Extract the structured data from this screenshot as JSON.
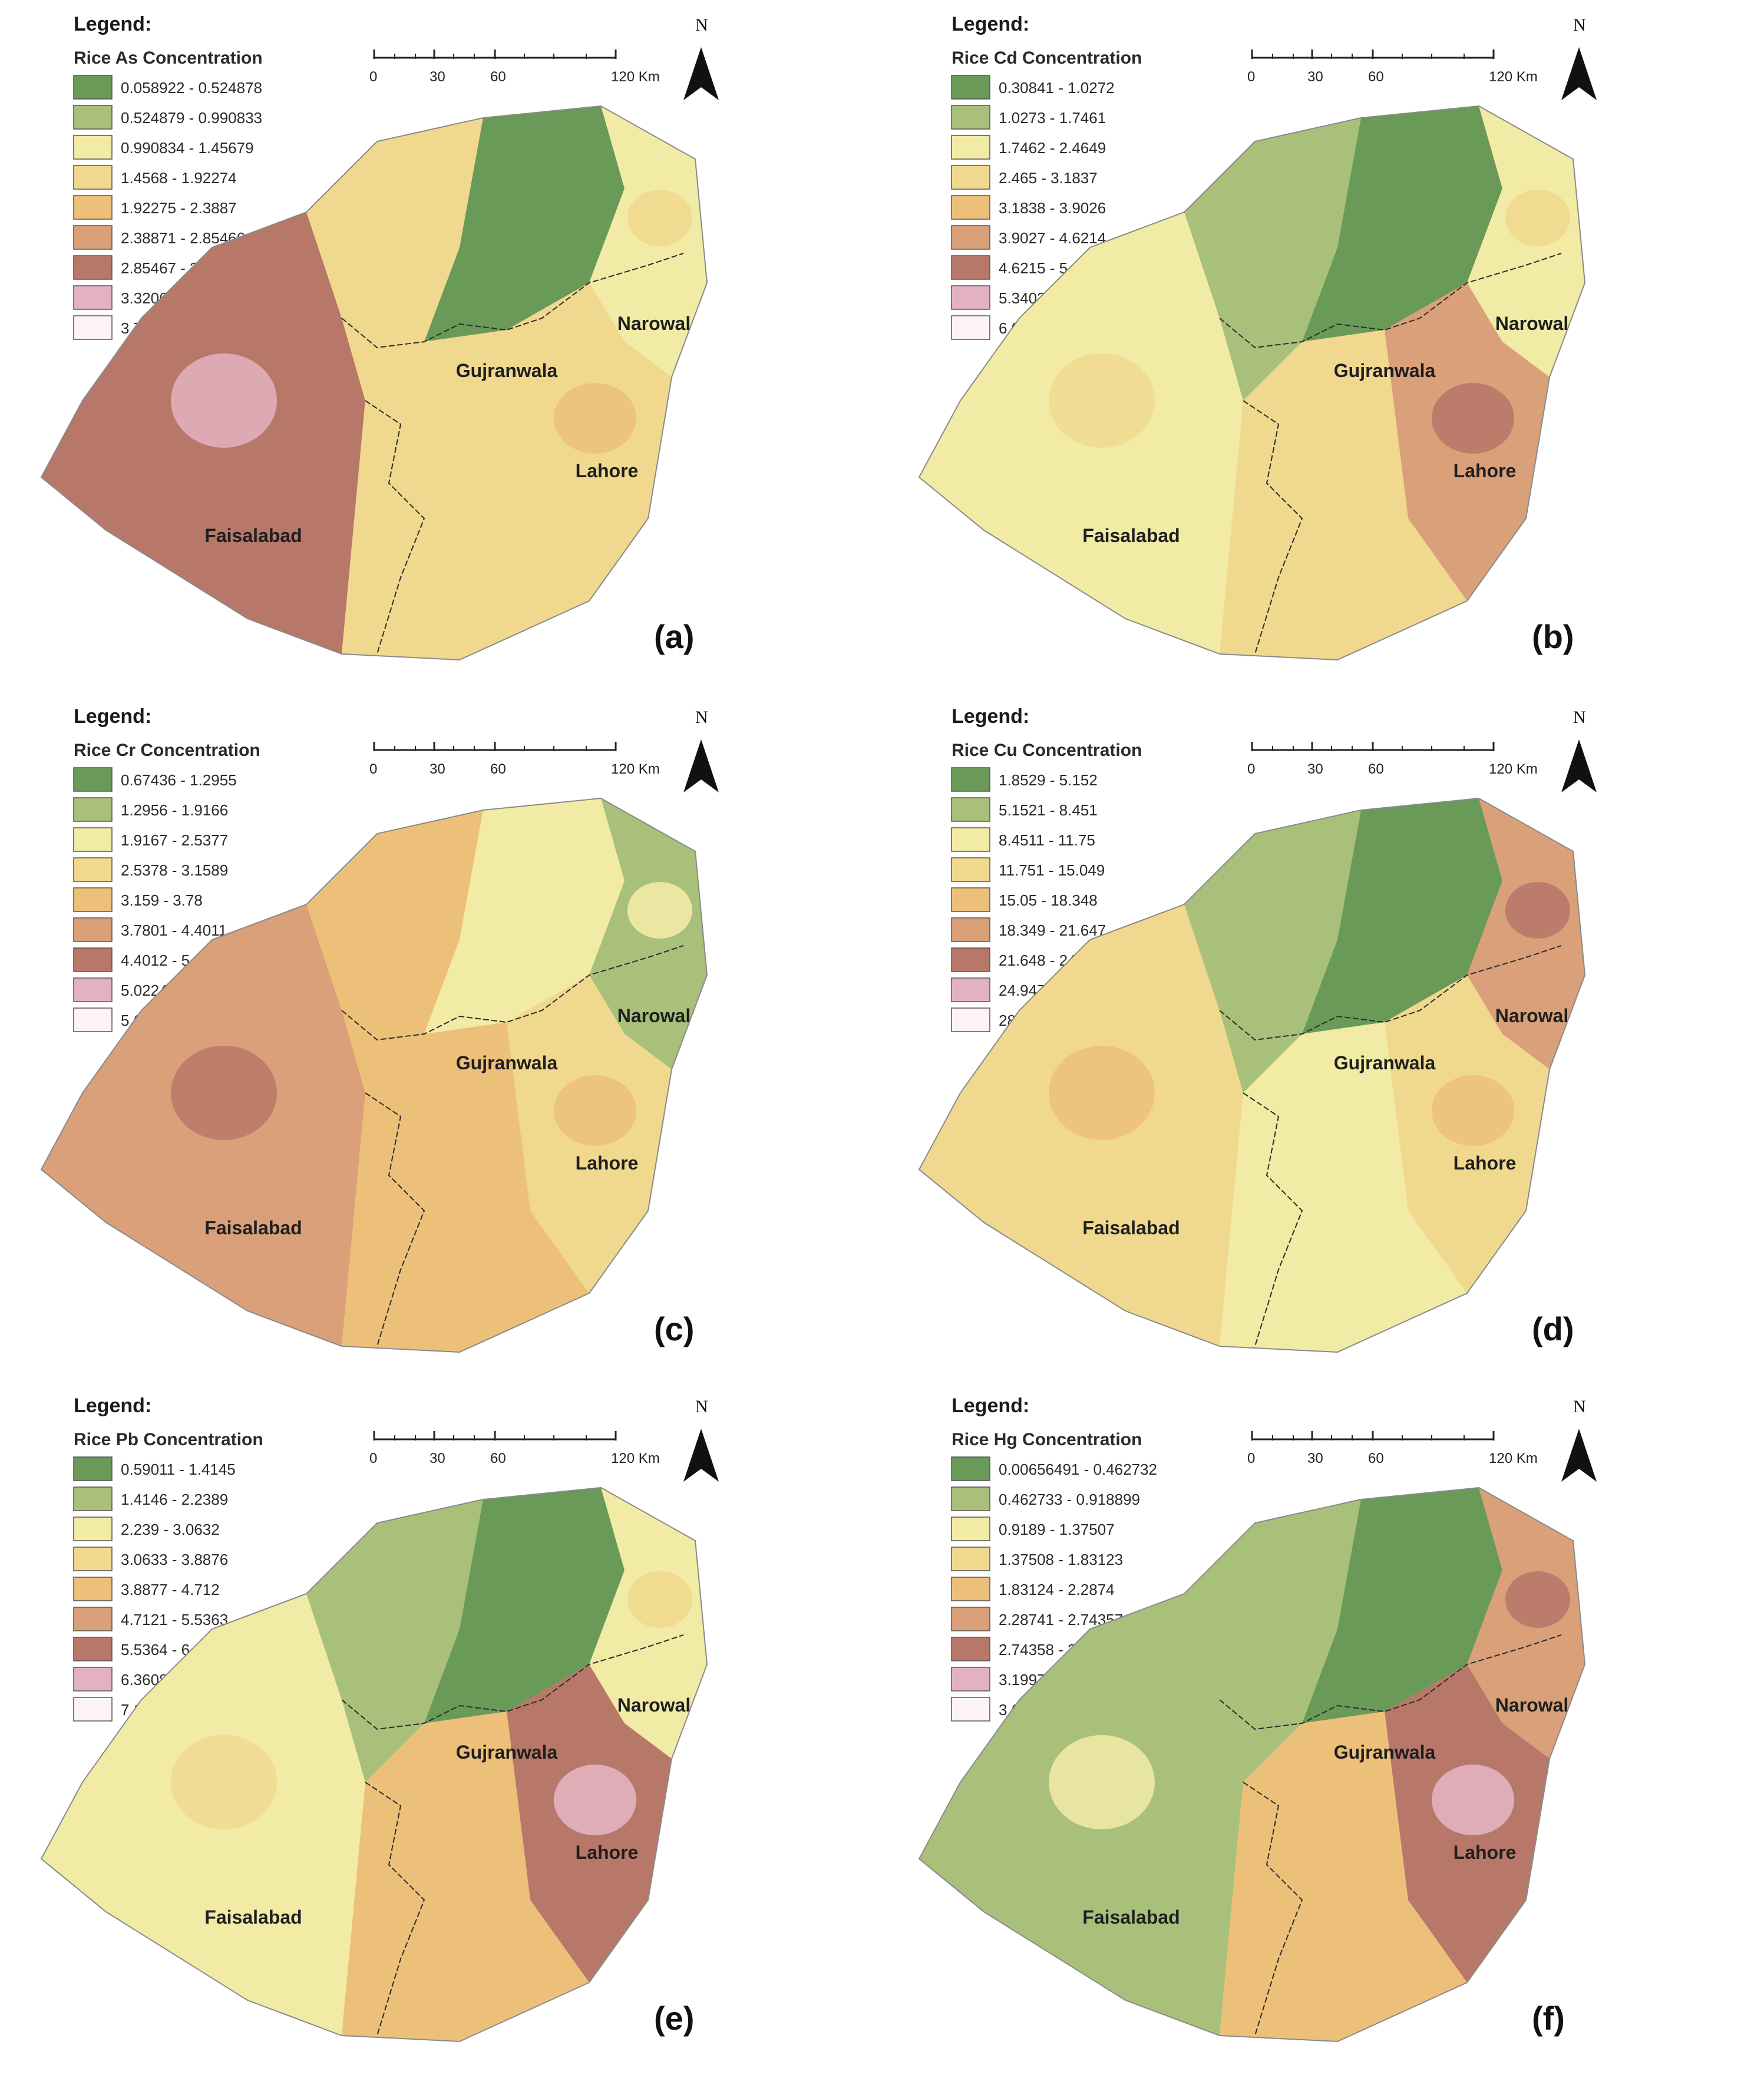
{
  "colors": {
    "classes": [
      "#6a9a58",
      "#a8c07a",
      "#f2eba6",
      "#f0d98e",
      "#edc07a",
      "#d9a07a",
      "#b87869",
      "#e3b2c0",
      "#fdf3f7"
    ],
    "boundary": "#2d2d2d"
  },
  "scale_bar": {
    "labels": [
      "0",
      "30",
      "60",
      "120 Km"
    ]
  },
  "north_label": "N",
  "panels": [
    {
      "id": "a",
      "label": "(a)",
      "legend_heading": "Legend:",
      "legend_title": "Rice As Concentration",
      "classes": [
        "0.058922 - 0.524878",
        "0.524879 - 0.990833",
        "0.990834 - 1.45679",
        "1.4568 - 1.92274",
        "1.92275 - 2.3887",
        "2.38871 - 2.85466",
        "2.85467 - 3.32061",
        "3.32062 - 3.78657",
        "3.78658 - 4.25252"
      ],
      "cities": [
        "Gujranwala",
        "Narowal",
        "Lahore",
        "Faisalabad"
      ],
      "zones": {
        "sw": 6,
        "nw": 3,
        "nc": 0,
        "ne": 2,
        "se": 3,
        "s": 3
      }
    },
    {
      "id": "b",
      "label": "(b)",
      "legend_heading": "Legend:",
      "legend_title": "Rice Cd Concentration",
      "classes": [
        "0.30841 - 1.0272",
        "1.0273 - 1.7461",
        "1.7462 - 2.4649",
        "2.465 - 3.1837",
        "3.1838 - 3.9026",
        "3.9027 - 4.6214",
        "4.6215 - 5.3402",
        "5.3403 - 6.0591",
        "6.0592 - 6.7779"
      ],
      "cities": [
        "Gujranwala",
        "Narowal",
        "Lahore",
        "Faisalabad"
      ],
      "zones": {
        "sw": 2,
        "nw": 1,
        "nc": 0,
        "ne": 2,
        "se": 5,
        "s": 3
      }
    },
    {
      "id": "c",
      "label": "(c)",
      "legend_heading": "Legend:",
      "legend_title": "Rice Cr Concentration",
      "classes": [
        "0.67436 - 1.2955",
        "1.2956 - 1.9166",
        "1.9167 - 2.5377",
        "2.5378 - 3.1589",
        "3.159 - 3.78",
        "3.7801 - 4.4011",
        "4.4012 - 5.0223",
        "5.0224 - 5.6434",
        "5.6435 - 6.2645"
      ],
      "cities": [
        "Gujranwala",
        "Narowal",
        "Lahore",
        "Faisalabad"
      ],
      "zones": {
        "sw": 5,
        "nw": 4,
        "nc": 2,
        "ne": 1,
        "se": 3,
        "s": 4
      }
    },
    {
      "id": "d",
      "label": "(d)",
      "legend_heading": "Legend:",
      "legend_title": "Rice Cu Concentration",
      "classes": [
        "1.8529 - 5.152",
        "5.1521 - 8.451",
        "8.4511 - 11.75",
        "11.751 - 15.049",
        "15.05 - 18.348",
        "18.349 - 21.647",
        "21.648 - 24.946",
        "24.947 - 28.246",
        "28.247 - 31.545"
      ],
      "cities": [
        "Gujranwala",
        "Narowal",
        "Lahore",
        "Faisalabad"
      ],
      "zones": {
        "sw": 3,
        "nw": 1,
        "nc": 0,
        "ne": 5,
        "se": 3,
        "s": 2
      }
    },
    {
      "id": "e",
      "label": "(e)",
      "legend_heading": "Legend:",
      "legend_title": "Rice Pb Concentration",
      "classes": [
        "0.59011 - 1.4145",
        "1.4146 - 2.2389",
        "2.239 - 3.0632",
        "3.0633 - 3.8876",
        "3.8877 - 4.712",
        "4.7121 - 5.5363",
        "5.5364 - 6.3607",
        "6.3608 - 7.1851",
        "7.1852 - 8.0094"
      ],
      "cities": [
        "Gujranwala",
        "Narowal",
        "Lahore",
        "Faisalabad"
      ],
      "zones": {
        "sw": 2,
        "nw": 1,
        "nc": 0,
        "ne": 2,
        "se": 6,
        "s": 4
      }
    },
    {
      "id": "f",
      "label": "(f)",
      "legend_heading": "Legend:",
      "legend_title": "Rice Hg Concentration",
      "classes": [
        "0.00656491 - 0.462732",
        "0.462733 - 0.918899",
        "0.9189 - 1.37507",
        "1.37508 - 1.83123",
        "1.83124 - 2.2874",
        "2.28741 - 2.74357",
        "2.74358 - 3.19973",
        "3.19974 - 3.6559",
        "3.65591 - 4.11207"
      ],
      "cities": [
        "Gujranwala",
        "Narowal",
        "Lahore",
        "Faisalabad"
      ],
      "zones": {
        "sw": 1,
        "nw": 1,
        "nc": 0,
        "ne": 5,
        "se": 6,
        "s": 4
      }
    }
  ]
}
